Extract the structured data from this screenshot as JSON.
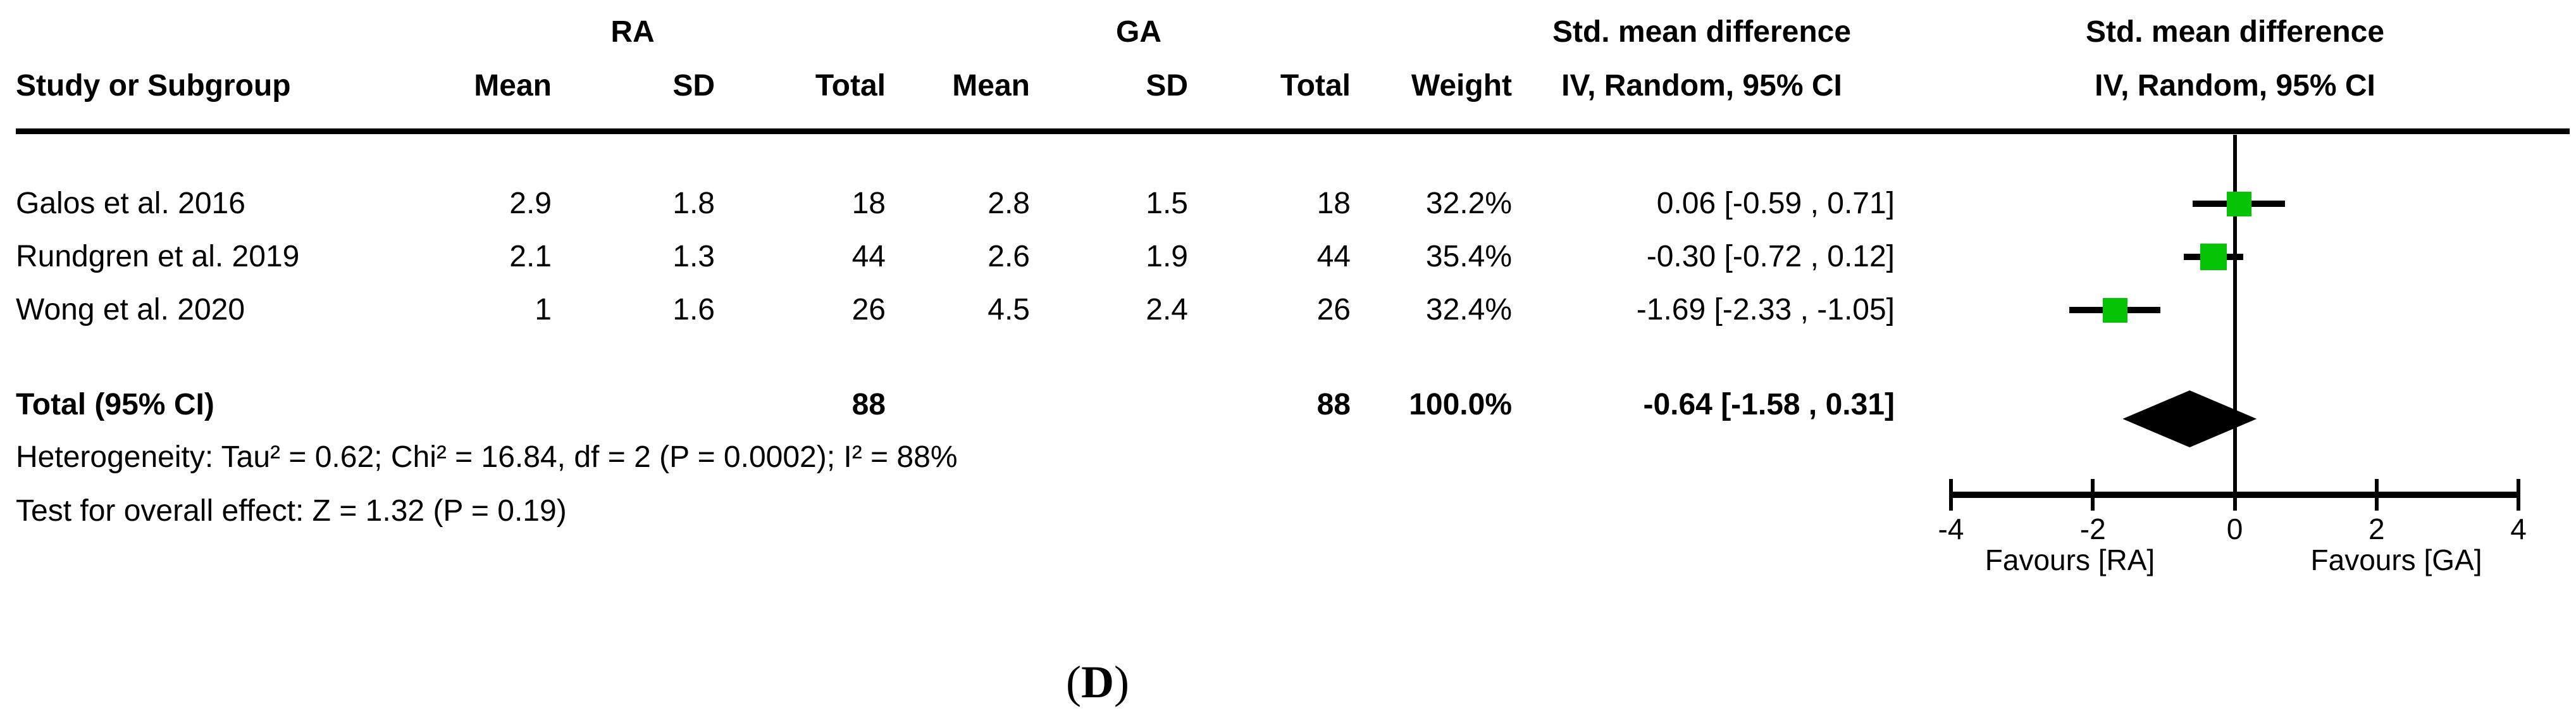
{
  "table": {
    "header": {
      "group1_label": "RA",
      "group2_label": "GA",
      "col_study": "Study or Subgroup",
      "col_mean": "Mean",
      "col_sd": "SD",
      "col_total": "Total",
      "col_weight": "Weight",
      "effect_title": "Std. mean difference",
      "effect_subtitle": "IV, Random, 95% CI",
      "plot_title": "Std. mean difference",
      "plot_subtitle": "IV, Random, 95% CI"
    },
    "rows": [
      {
        "study": "Galos et al. 2016",
        "ra_mean": "2.9",
        "ra_sd": "1.8",
        "ra_total": "18",
        "ga_mean": "2.8",
        "ga_sd": "1.5",
        "ga_total": "18",
        "weight": "32.2%",
        "ci_text": "0.06 [-0.59 , 0.71]"
      },
      {
        "study": "Rundgren et al. 2019",
        "ra_mean": "2.1",
        "ra_sd": "1.3",
        "ra_total": "44",
        "ga_mean": "2.6",
        "ga_sd": "1.9",
        "ga_total": "44",
        "weight": "35.4%",
        "ci_text": "-0.30 [-0.72 , 0.12]"
      },
      {
        "study": "Wong et al. 2020",
        "ra_mean": "1",
        "ra_sd": "1.6",
        "ra_total": "26",
        "ga_mean": "4.5",
        "ga_sd": "2.4",
        "ga_total": "26",
        "weight": "32.4%",
        "ci_text": "-1.69 [-2.33 , -1.05]"
      }
    ],
    "total_row": {
      "label": "Total (95% CI)",
      "ra_total": "88",
      "ga_total": "88",
      "weight": "100.0%",
      "ci_text": "-0.64 [-1.58 , 0.31]"
    },
    "heterogeneity": "Heterogeneity: Tau² = 0.62; Chi² = 16.84, df = 2 (P = 0.0002); I² = 88%",
    "overall_effect": "Test for overall effect: Z = 1.32 (P = 0.19)"
  },
  "chart_data": {
    "type": "forest",
    "effect_measure": "Std. mean difference (IV, Random, 95% CI)",
    "axis": {
      "min": -4,
      "max": 4,
      "ticks": [
        -4,
        -2,
        0,
        2,
        4
      ],
      "left_label": "Favours [RA]",
      "right_label": "Favours [GA]"
    },
    "studies": [
      {
        "name": "Galos et al. 2016",
        "smd": 0.06,
        "ci_low": -0.59,
        "ci_high": 0.71,
        "weight_pct": 32.2
      },
      {
        "name": "Rundgren et al. 2019",
        "smd": -0.3,
        "ci_low": -0.72,
        "ci_high": 0.12,
        "weight_pct": 35.4
      },
      {
        "name": "Wong et al. 2020",
        "smd": -1.69,
        "ci_low": -2.33,
        "ci_high": -1.05,
        "weight_pct": 32.4
      }
    ],
    "total": {
      "smd": -0.64,
      "ci_low": -1.58,
      "ci_high": 0.31
    }
  },
  "figure_label": {
    "open": "(",
    "letter": "D",
    "close": ")"
  },
  "colors": {
    "marker_green": "#05c405",
    "line_black": "#000000",
    "background": "#ffffff"
  }
}
